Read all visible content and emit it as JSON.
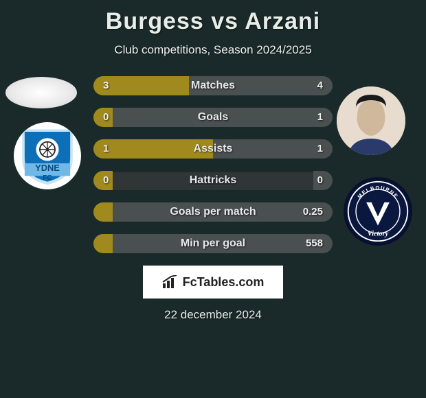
{
  "title": "Burgess vs Arzani",
  "subtitle": "Club competitions, Season 2024/2025",
  "date": "22 december 2024",
  "brand": "FcTables.com",
  "colors": {
    "left_bar": "#a08a1e",
    "right_bar": "#4a4f4f",
    "row_bg": "#303636",
    "background": "#1a2a2a"
  },
  "stats": [
    {
      "label": "Matches",
      "left_value": "3",
      "right_value": "4",
      "left_pct": 40,
      "right_pct": 60
    },
    {
      "label": "Goals",
      "left_value": "0",
      "right_value": "1",
      "left_pct": 8,
      "right_pct": 92
    },
    {
      "label": "Assists",
      "left_value": "1",
      "right_value": "1",
      "left_pct": 50,
      "right_pct": 50
    },
    {
      "label": "Hattricks",
      "left_value": "0",
      "right_value": "0",
      "left_pct": 8,
      "right_pct": 8
    },
    {
      "label": "Goals per match",
      "left_value": "",
      "right_value": "0.25",
      "left_pct": 8,
      "right_pct": 92
    },
    {
      "label": "Min per goal",
      "left_value": "",
      "right_value": "558",
      "left_pct": 8,
      "right_pct": 92
    }
  ],
  "players": {
    "left": {
      "name": "Burgess"
    },
    "right": {
      "name": "Arzani"
    }
  },
  "clubs": {
    "left": {
      "name": "Sydney FC",
      "label_line1": "YDNE",
      "label_line2": "FC",
      "primary": "#0c6fb8",
      "secondary": "#6fb8e8"
    },
    "right": {
      "name": "Melbourne Victory",
      "label_top": "MELBOURNE",
      "label_mid": "Victory",
      "primary": "#ffffff",
      "bg": "#0a1840"
    }
  }
}
